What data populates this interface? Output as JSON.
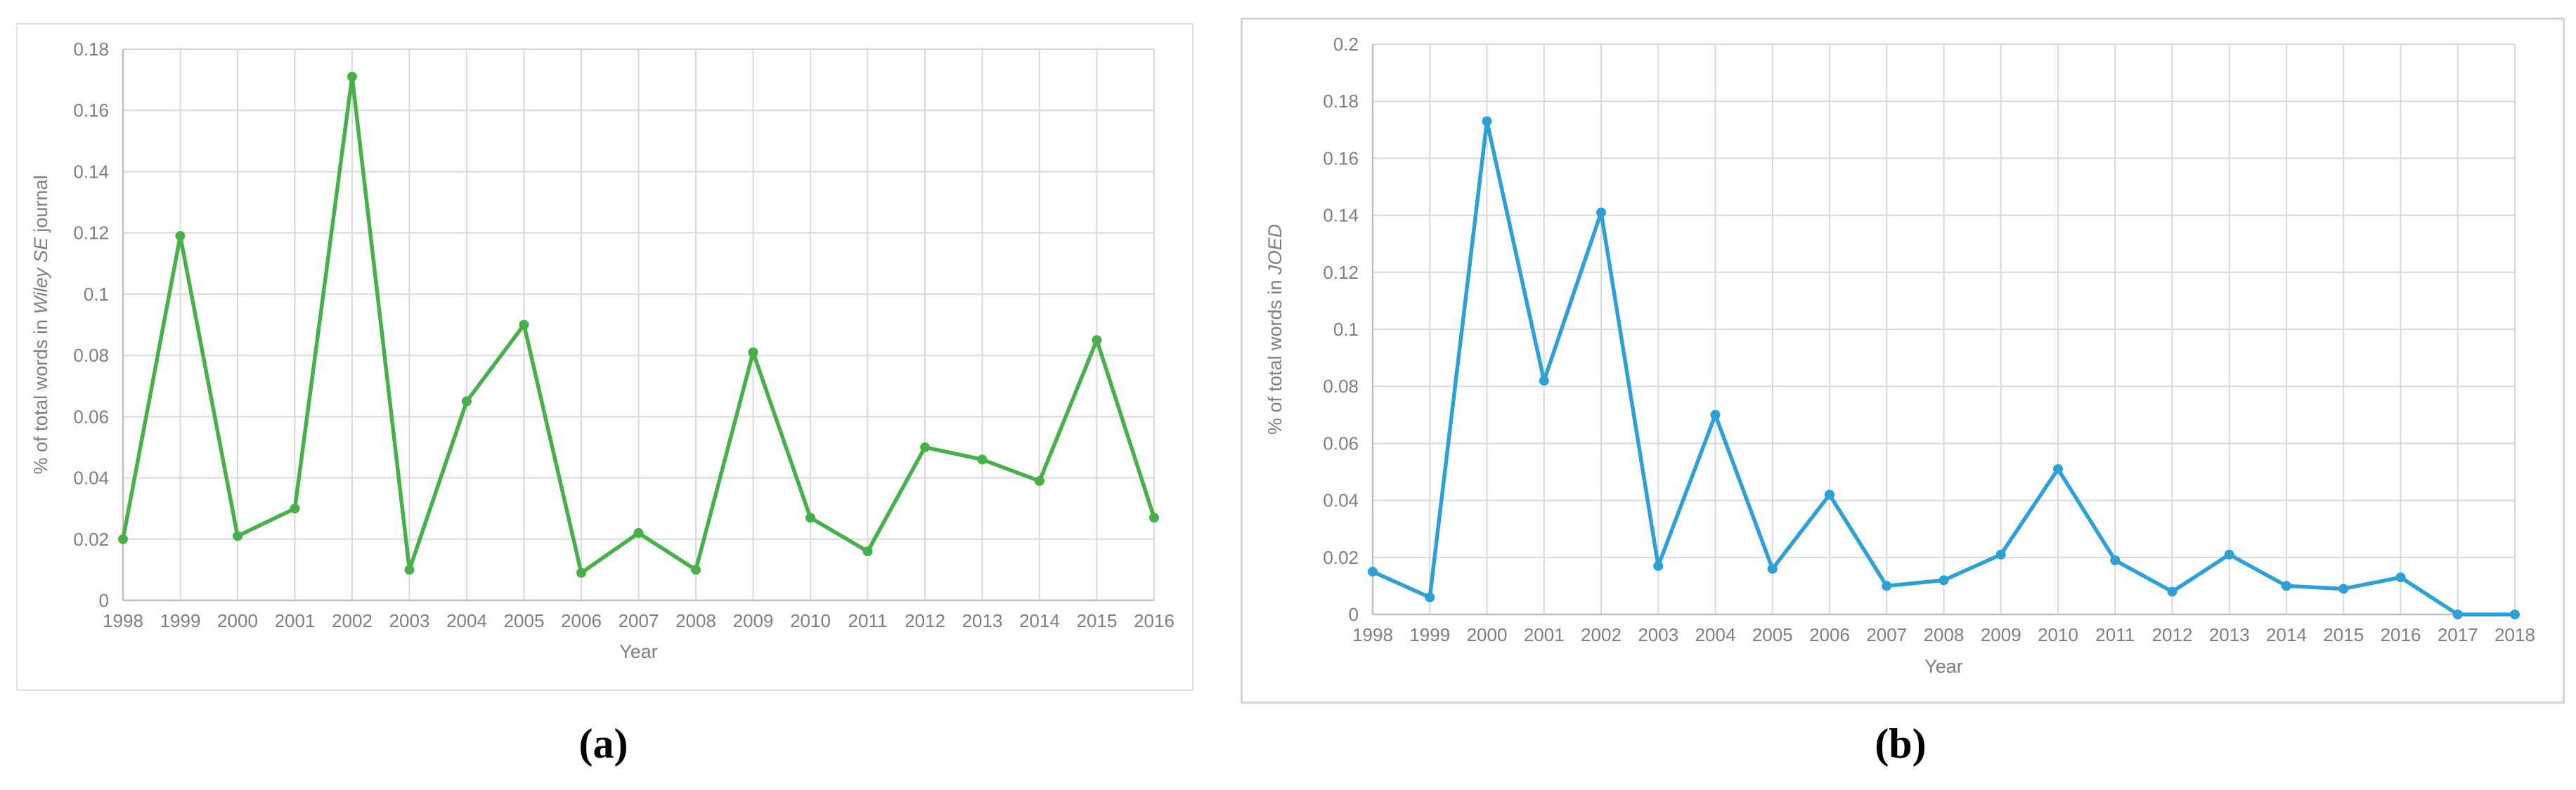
{
  "figure": {
    "captions": {
      "a": "(a)",
      "b": "(b)"
    }
  },
  "chart_data": [
    {
      "type": "line",
      "panel": "a",
      "title": "",
      "categories": [
        "1998",
        "1999",
        "2000",
        "2001",
        "2002",
        "2003",
        "2004",
        "2005",
        "2006",
        "2007",
        "2008",
        "2009",
        "2010",
        "2011",
        "2012",
        "2013",
        "2014",
        "2015",
        "2016"
      ],
      "values": [
        0.02,
        0.119,
        0.021,
        0.03,
        0.171,
        0.01,
        0.065,
        0.09,
        0.009,
        0.022,
        0.01,
        0.081,
        0.027,
        0.016,
        0.05,
        0.046,
        0.039,
        0.085,
        0.027
      ],
      "xlabel": "Year",
      "ylabel": "% of total words in Wiley SE journal",
      "ylabel_parts": [
        {
          "text": "% of total words in ",
          "italic": false
        },
        {
          "text": "Wiley SE",
          "italic": true
        },
        {
          "text": " journal",
          "italic": false
        }
      ],
      "ylim": [
        0,
        0.18
      ],
      "ytick_step": 0.02,
      "ytick_labels": [
        "0",
        "0.02",
        "0.04",
        "0.06",
        "0.08",
        "0.1",
        "0.12",
        "0.14",
        "0.16",
        "0.18"
      ],
      "grid": true,
      "legend": "none",
      "line_color": "#46B049"
    },
    {
      "type": "line",
      "panel": "b",
      "title": "",
      "categories": [
        "1998",
        "1999",
        "2000",
        "2001",
        "2002",
        "2003",
        "2004",
        "2005",
        "2006",
        "2007",
        "2008",
        "2009",
        "2010",
        "2011",
        "2012",
        "2013",
        "2014",
        "2015",
        "2016",
        "2017",
        "2018"
      ],
      "values": [
        0.015,
        0.006,
        0.173,
        0.082,
        0.141,
        0.017,
        0.07,
        0.016,
        0.042,
        0.01,
        0.012,
        0.021,
        0.051,
        0.019,
        0.008,
        0.021,
        0.01,
        0.009,
        0.013,
        0.0,
        0.0
      ],
      "xlabel": "Year",
      "ylabel": "% of total words in JOED",
      "ylabel_parts": [
        {
          "text": "% of total words in ",
          "italic": false
        },
        {
          "text": "JOED",
          "italic": true
        }
      ],
      "ylim": [
        0,
        0.2
      ],
      "ytick_step": 0.02,
      "ytick_labels": [
        "0",
        "0.02",
        "0.04",
        "0.06",
        "0.08",
        "0.1",
        "0.12",
        "0.14",
        "0.16",
        "0.18",
        "0.2"
      ],
      "grid": true,
      "legend": "none",
      "line_color": "#2DA0D8"
    }
  ],
  "style_colors": {
    "gridline": "#d9d9d9",
    "axis_line": "#bfbfbf",
    "tick_text": "#7f7f7f"
  }
}
